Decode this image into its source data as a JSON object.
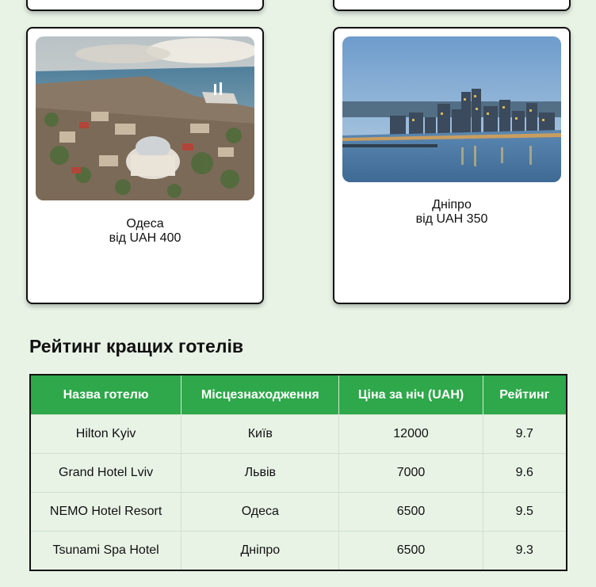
{
  "destinations": [
    {
      "city": "Одеса",
      "price": "від UAH 400"
    },
    {
      "city": "Дніпро",
      "price": "від UAH 350"
    }
  ],
  "ranking": {
    "title": "Рейтинг кращих готелів",
    "columns": [
      "Назва готелю",
      "Місцезнаходження",
      "Ціна за ніч (UAH)",
      "Рейтинг"
    ],
    "rows": [
      [
        "Hilton Kyiv",
        "Київ",
        "12000",
        "9.7"
      ],
      [
        "Grand Hotel Lviv",
        "Львів",
        "7000",
        "9.6"
      ],
      [
        "NEMO Hotel Resort",
        "Одеса",
        "6500",
        "9.5"
      ],
      [
        "Tsunami Spa Hotel",
        "Дніпро",
        "6500",
        "9.3"
      ]
    ]
  },
  "colors": {
    "page_background": "#e8f3e6",
    "table_header": "#2ea84a",
    "card_border": "#111111"
  }
}
